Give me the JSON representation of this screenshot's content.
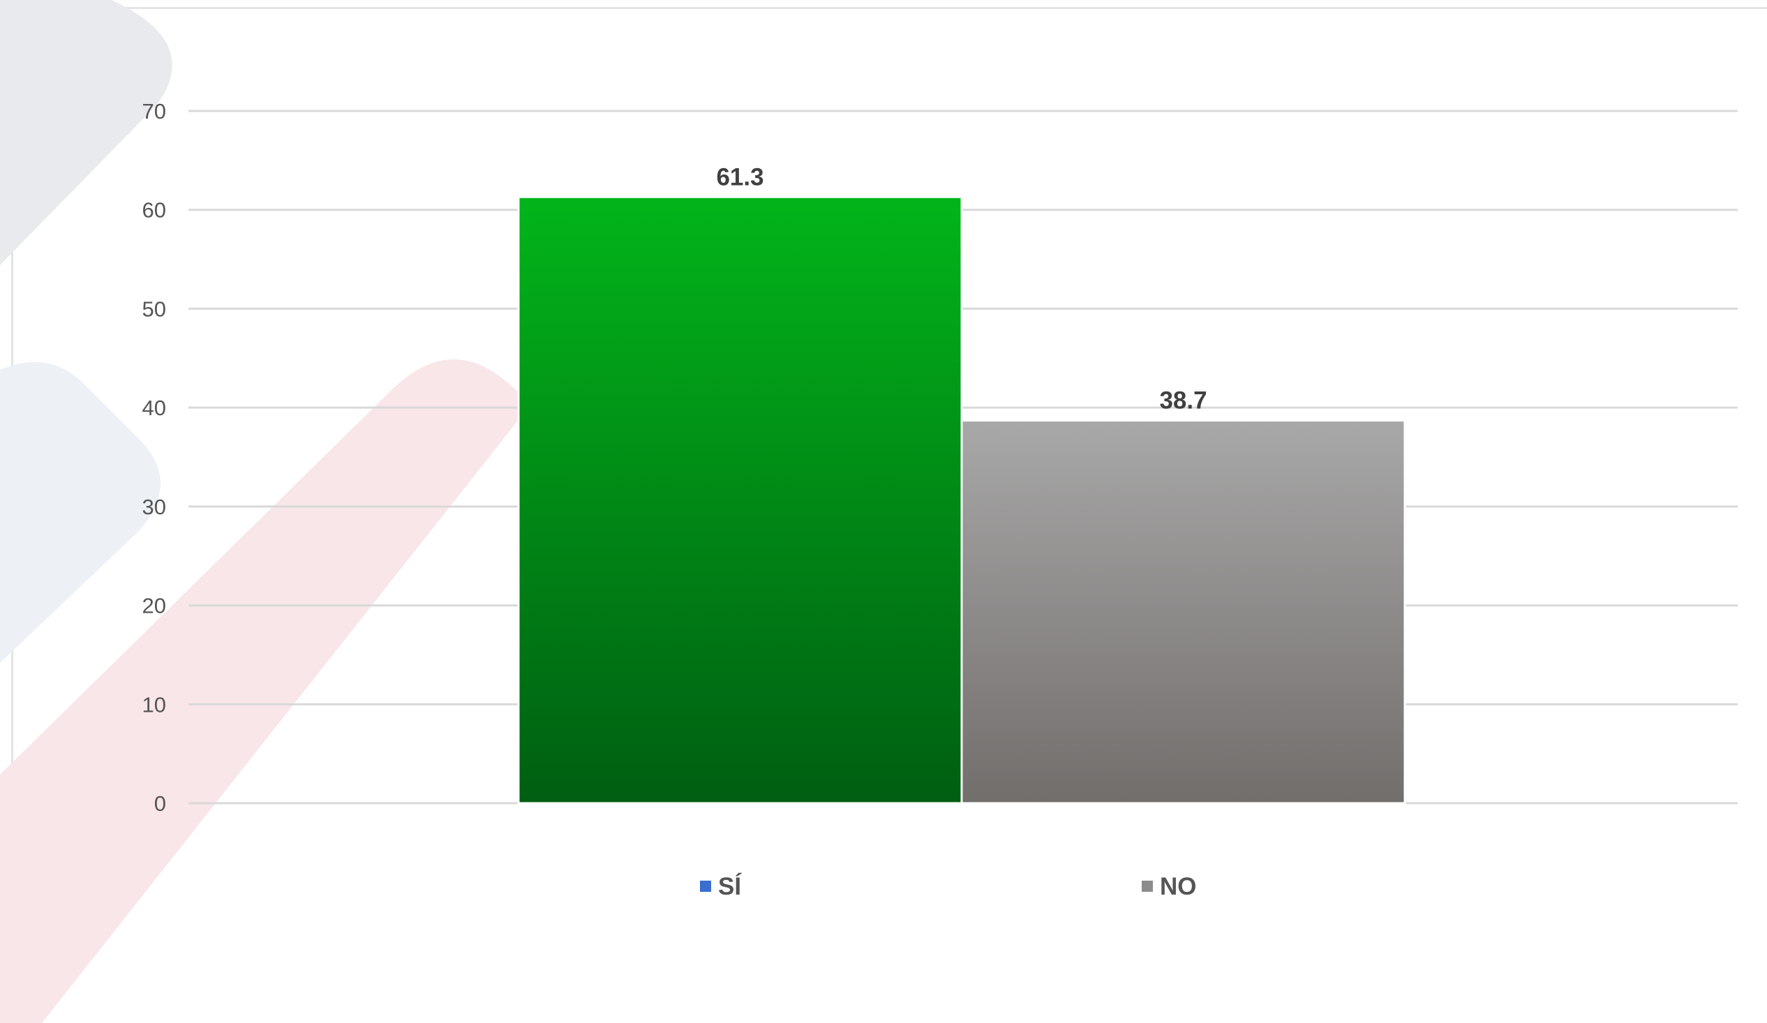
{
  "chart_data": {
    "type": "bar",
    "categories": [
      "SÍ",
      "NO"
    ],
    "values": [
      61.3,
      38.7
    ],
    "data_labels": [
      "61.3",
      "38.7"
    ],
    "ylim": [
      0,
      70
    ],
    "yticks": [
      0,
      10,
      20,
      30,
      40,
      50,
      60,
      70
    ],
    "grid": true,
    "legend": "bottom",
    "legend_entries": [
      {
        "label": "SÍ",
        "color": "#3a6fd0"
      },
      {
        "label": "NO",
        "color": "#8c8c8c"
      }
    ],
    "colors": {
      "si_top": "#02b51a",
      "si_bottom": "#005e12",
      "no_top": "#a8a8a8",
      "no_bottom": "#726e6c",
      "grid": "#d9d9d9"
    }
  }
}
